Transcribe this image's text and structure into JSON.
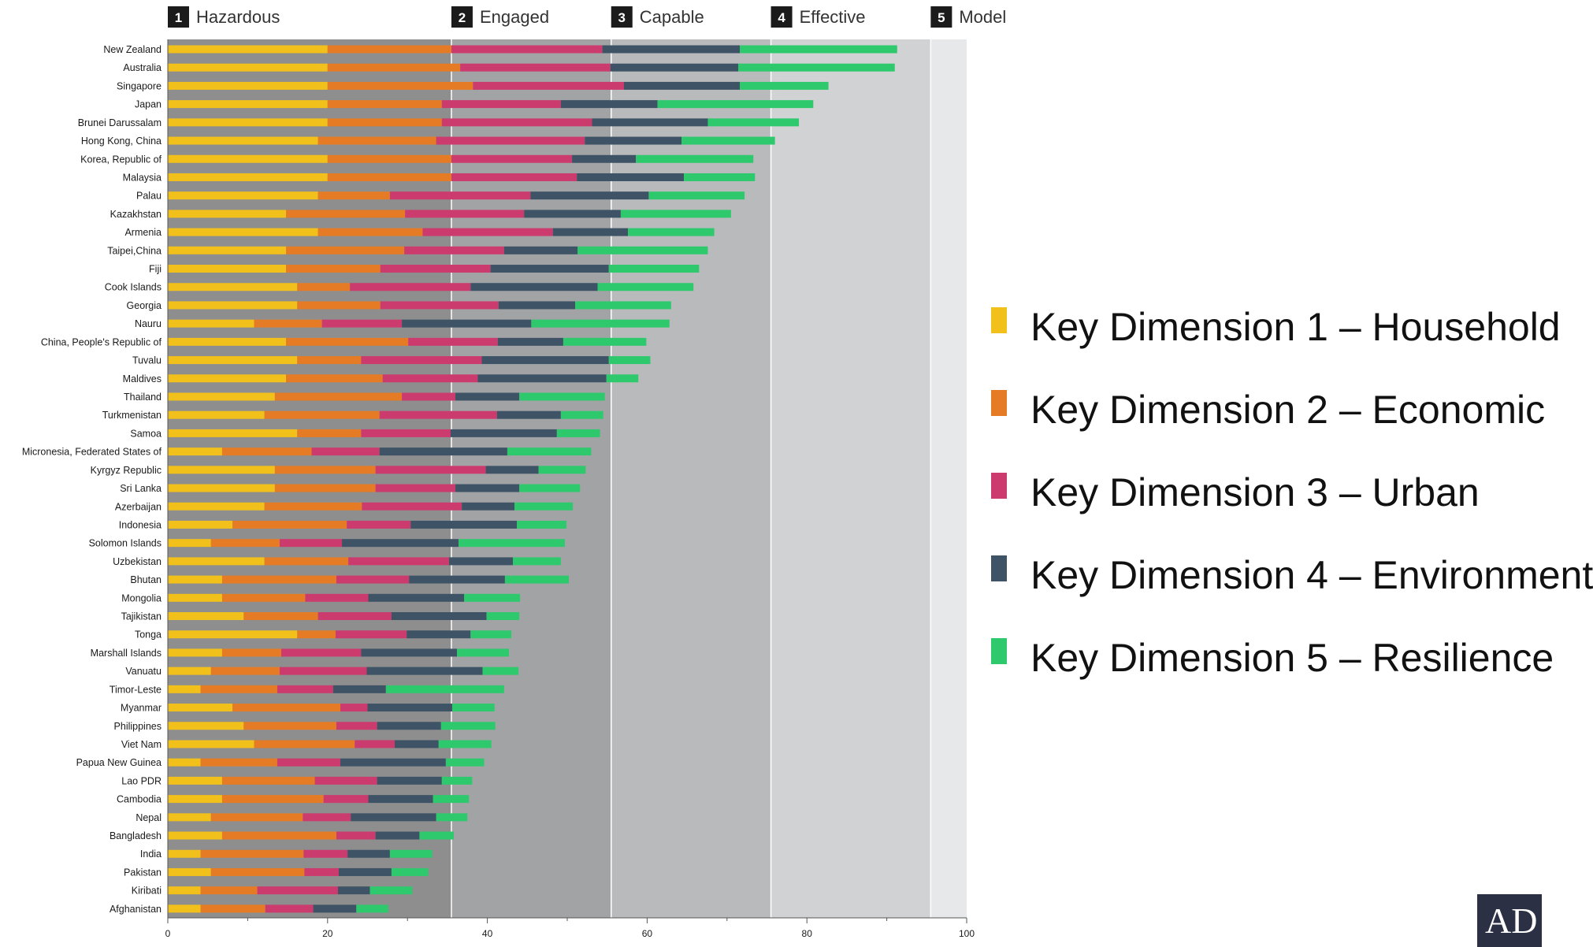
{
  "chart_data": {
    "type": "bar",
    "orientation": "horizontal",
    "stacked": true,
    "title": "",
    "xlabel": "",
    "ylabel": "",
    "xlim": [
      0,
      100
    ],
    "x_ticks": [
      0,
      20,
      40,
      60,
      80,
      100
    ],
    "grid": false,
    "legend_position": "right",
    "bands": [
      {
        "number": "1",
        "name": "Hazardous",
        "from": 0,
        "to": 35.5,
        "color": "#8e8e8e"
      },
      {
        "number": "2",
        "name": "Engaged",
        "from": 35.5,
        "to": 55.5,
        "color": "#a2a3a5"
      },
      {
        "number": "3",
        "name": "Capable",
        "from": 55.5,
        "to": 75.5,
        "color": "#b9babc"
      },
      {
        "number": "4",
        "name": "Effective",
        "from": 75.5,
        "to": 95.5,
        "color": "#d1d2d4"
      },
      {
        "number": "5",
        "name": "Model",
        "from": 95.5,
        "to": 100,
        "color": "#e7e8e9"
      }
    ],
    "categories": [
      "New Zealand",
      "Australia",
      "Singapore",
      "Japan",
      "Brunei Darussalam",
      "Hong Kong, China",
      "Korea, Republic of",
      "Malaysia",
      "Palau",
      "Kazakhstan",
      "Armenia",
      "Taipei,China",
      "Fiji",
      "Cook Islands",
      "Georgia",
      "Nauru",
      "China, People's Republic of",
      "Tuvalu",
      "Maldives",
      "Thailand",
      "Turkmenistan",
      "Samoa",
      "Micronesia, Federated States of",
      "Kyrgyz Republic",
      "Sri Lanka",
      "Azerbaijan",
      "Indonesia",
      "Solomon Islands",
      "Uzbekistan",
      "Bhutan",
      "Mongolia",
      "Tajikistan",
      "Tonga",
      "Marshall Islands",
      "Vanuatu",
      "Timor-Leste",
      "Myanmar",
      "Philippines",
      "Viet Nam",
      "Papua New Guinea",
      "Lao PDR",
      "Cambodia",
      "Nepal",
      "Bangladesh",
      "India",
      "Pakistan",
      "Kiribati",
      "Afghanistan"
    ],
    "series": [
      {
        "name": "Key Dimension 1 – Household",
        "color": "#f2c01a",
        "values": [
          20,
          20,
          20,
          20,
          20,
          18.8,
          20,
          20,
          18.8,
          14.8,
          18.8,
          14.8,
          14.8,
          16.2,
          16.2,
          10.8,
          14.8,
          16.2,
          14.8,
          13.4,
          12.1,
          16.2,
          6.8,
          13.4,
          13.4,
          12.1,
          8.1,
          5.4,
          12.1,
          6.8,
          6.8,
          9.5,
          16.2,
          6.8,
          5.4,
          4.1,
          8.1,
          9.5,
          10.8,
          4.1,
          6.8,
          6.8,
          5.4,
          6.8,
          4.1,
          5.4,
          4.1,
          4.1
        ]
      },
      {
        "name": "Key Dimension 2 – Economic",
        "color": "#e57c25",
        "values": [
          15.5,
          16.6,
          18.2,
          14.3,
          14.3,
          14.8,
          15.5,
          15.5,
          9,
          14.9,
          13.1,
          14.8,
          11.8,
          6.6,
          10.4,
          8.5,
          15.3,
          8,
          12.1,
          15.9,
          14.4,
          8,
          11.2,
          12.6,
          12.6,
          12.2,
          14.3,
          8.6,
          10.5,
          14.3,
          10.4,
          9.3,
          4.8,
          7.4,
          8.6,
          9.6,
          13.5,
          11.6,
          12.6,
          9.6,
          11.6,
          12.7,
          11.5,
          14.3,
          12.9,
          11.7,
          7.1,
          8.1
        ]
      },
      {
        "name": "Key Dimension 3 – Urban",
        "color": "#cc3b6e",
        "values": [
          18.9,
          18.8,
          18.9,
          14.9,
          18.8,
          18.6,
          15.1,
          15.7,
          17.6,
          14.9,
          16.3,
          12.5,
          13.8,
          15.1,
          14.8,
          10,
          11.2,
          15.1,
          11.9,
          6.7,
          14.7,
          11.2,
          8.5,
          13.8,
          10,
          12.5,
          8,
          7.8,
          12.6,
          9.1,
          7.9,
          9.2,
          8.9,
          10,
          10.9,
          7,
          3.4,
          5.1,
          5,
          7.9,
          7.8,
          5.6,
          6,
          4.9,
          5.5,
          4.3,
          10.1,
          6
        ]
      },
      {
        "name": "Key Dimension 4 – Environment",
        "color": "#3e5466",
        "values": [
          17.2,
          16,
          14.5,
          12.1,
          14.5,
          12.1,
          8,
          13.4,
          14.8,
          12.1,
          9.4,
          9.2,
          14.8,
          15.9,
          9.6,
          16.2,
          8.2,
          15.9,
          16.1,
          8,
          8,
          13.3,
          16,
          6.6,
          8,
          6.6,
          13.3,
          14.6,
          8,
          12,
          12,
          11.9,
          8,
          12,
          14.5,
          6.6,
          10.6,
          8,
          5.5,
          13.2,
          8.1,
          8.1,
          10.7,
          5.5,
          5.3,
          6.6,
          4,
          5.4
        ]
      },
      {
        "name": "Key Dimension 5 – Resilience",
        "color": "#2ec96d",
        "values": [
          19.7,
          19.6,
          11.1,
          19.5,
          11.4,
          11.7,
          14.7,
          8.9,
          12,
          13.8,
          10.8,
          16.3,
          11.3,
          12,
          12,
          17.3,
          10.4,
          5.2,
          4,
          10.7,
          5.3,
          5.4,
          10.5,
          5.9,
          7.6,
          7.3,
          6.2,
          13.3,
          6,
          8,
          7,
          4.1,
          5.1,
          6.5,
          4.5,
          14.8,
          5.3,
          6.8,
          6.6,
          4.8,
          3.8,
          4.5,
          3.9,
          4.3,
          5.3,
          4.6,
          5.3,
          4
        ]
      }
    ]
  }
}
